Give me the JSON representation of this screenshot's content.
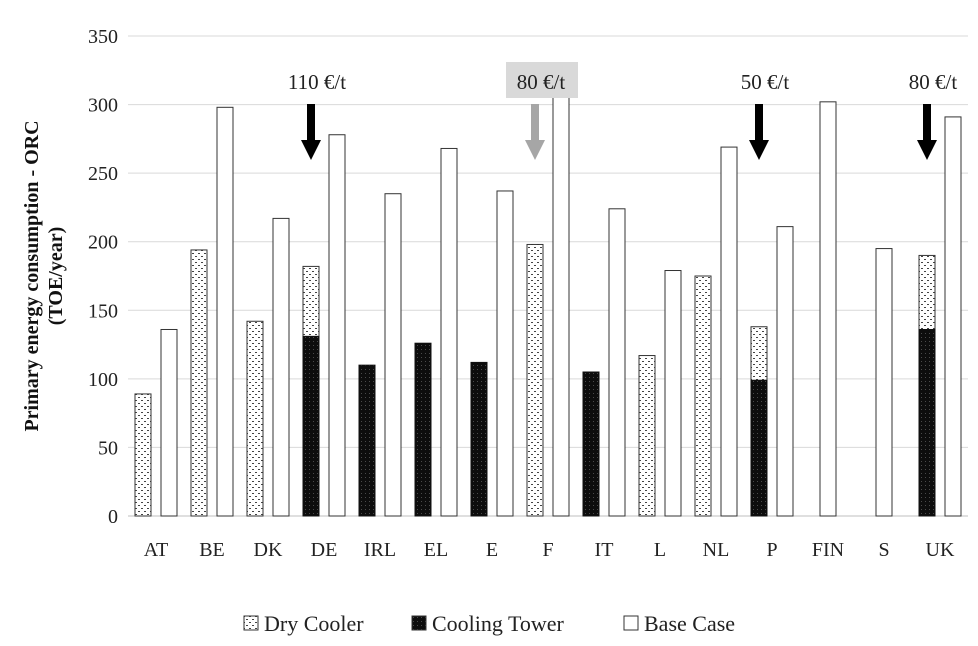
{
  "chart_data": {
    "type": "bar",
    "ylabel_line1": "Primary energy consumption - ORC",
    "ylabel_line2": "(TOE/year)",
    "xlabel": "",
    "ylim": [
      0,
      350
    ],
    "yticks": [
      0,
      50,
      100,
      150,
      200,
      250,
      300,
      350
    ],
    "grid": true,
    "legend_position": "bottom",
    "categories": [
      "AT",
      "BE",
      "DK",
      "DE",
      "IRL",
      "EL",
      "E",
      "F",
      "IT",
      "L",
      "NL",
      "P",
      "FIN",
      "S",
      "UK"
    ],
    "series": [
      {
        "name": "Dry Cooler",
        "pattern": "dotted",
        "color": "#ffffff",
        "values": [
          89,
          194,
          142,
          182,
          0,
          0,
          0,
          198,
          0,
          117,
          175,
          138,
          0,
          0,
          190
        ]
      },
      {
        "name": "Cooling Tower",
        "pattern": "solid-dark",
        "color": "#111111",
        "values": [
          0,
          0,
          0,
          131,
          110,
          126,
          112,
          0,
          105,
          0,
          0,
          99,
          0,
          0,
          136
        ]
      },
      {
        "name": "Base Case",
        "pattern": "plain",
        "color": "#ffffff",
        "values": [
          136,
          298,
          217,
          278,
          235,
          268,
          237,
          310,
          224,
          179,
          269,
          211,
          302,
          195,
          291
        ]
      }
    ],
    "annotations": [
      {
        "category": "DE",
        "text": "110 €/t",
        "arrow_color": "#000000",
        "highlight": false
      },
      {
        "category": "F",
        "text": "80 €/t",
        "arrow_color": "#a6a6a6",
        "highlight": true
      },
      {
        "category": "P",
        "text": "50 €/t",
        "arrow_color": "#000000",
        "highlight": false
      },
      {
        "category": "UK",
        "text": "80 €/t",
        "arrow_color": "#000000",
        "highlight": false
      }
    ]
  }
}
